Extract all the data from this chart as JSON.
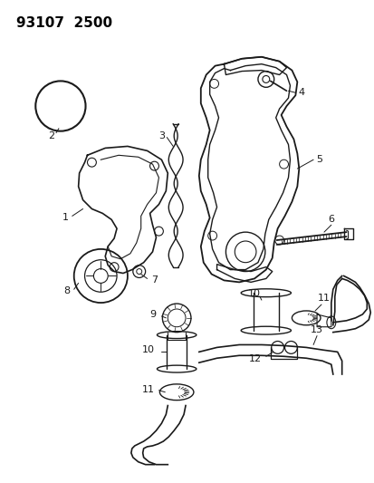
{
  "title_text": "93107  2500",
  "bg_color": "#ffffff",
  "line_color": "#1a1a1a",
  "label_color": "#000000",
  "title_fontsize": 11,
  "label_fontsize": 8,
  "figsize": [
    4.14,
    5.33
  ],
  "dpi": 100
}
